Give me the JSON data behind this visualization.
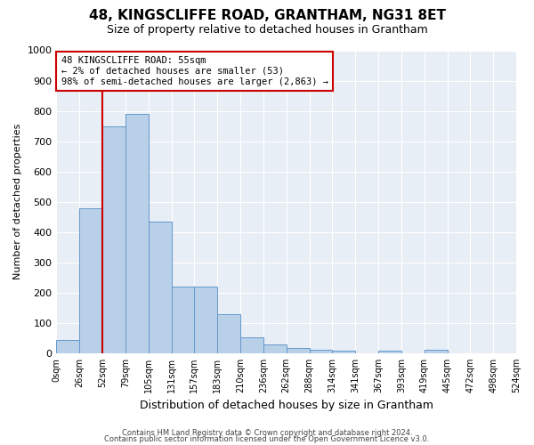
{
  "title": "48, KINGSCLIFFE ROAD, GRANTHAM, NG31 8ET",
  "subtitle": "Size of property relative to detached houses in Grantham",
  "xlabel": "Distribution of detached houses by size in Grantham",
  "ylabel": "Number of detached properties",
  "bar_color": "#b8d0e8",
  "bar_edge_color": "#6699cc",
  "background_color": "#e8eef5",
  "x_labels": [
    "0sqm",
    "26sqm",
    "52sqm",
    "79sqm",
    "105sqm",
    "131sqm",
    "157sqm",
    "183sqm",
    "210sqm",
    "236sqm",
    "262sqm",
    "288sqm",
    "314sqm",
    "341sqm",
    "367sqm",
    "393sqm",
    "419sqm",
    "445sqm",
    "472sqm",
    "498sqm",
    "524sqm"
  ],
  "bar_heights": [
    45,
    480,
    750,
    790,
    435,
    220,
    220,
    130,
    52,
    30,
    18,
    12,
    10,
    0,
    10,
    0,
    12,
    0,
    0,
    0
  ],
  "ylim": [
    0,
    1000
  ],
  "yticks": [
    0,
    100,
    200,
    300,
    400,
    500,
    600,
    700,
    800,
    900,
    1000
  ],
  "property_tick_index": 2,
  "annotation_line1": "48 KINGSCLIFFE ROAD: 55sqm",
  "annotation_line2": "← 2% of detached houses are smaller (53)",
  "annotation_line3": "98% of semi-detached houses are larger (2,863) →",
  "annotation_box_color": "white",
  "annotation_box_edge_color": "#cc0000",
  "footer1": "Contains HM Land Registry data © Crown copyright and database right 2024.",
  "footer2": "Contains public sector information licensed under the Open Government Licence v3.0."
}
